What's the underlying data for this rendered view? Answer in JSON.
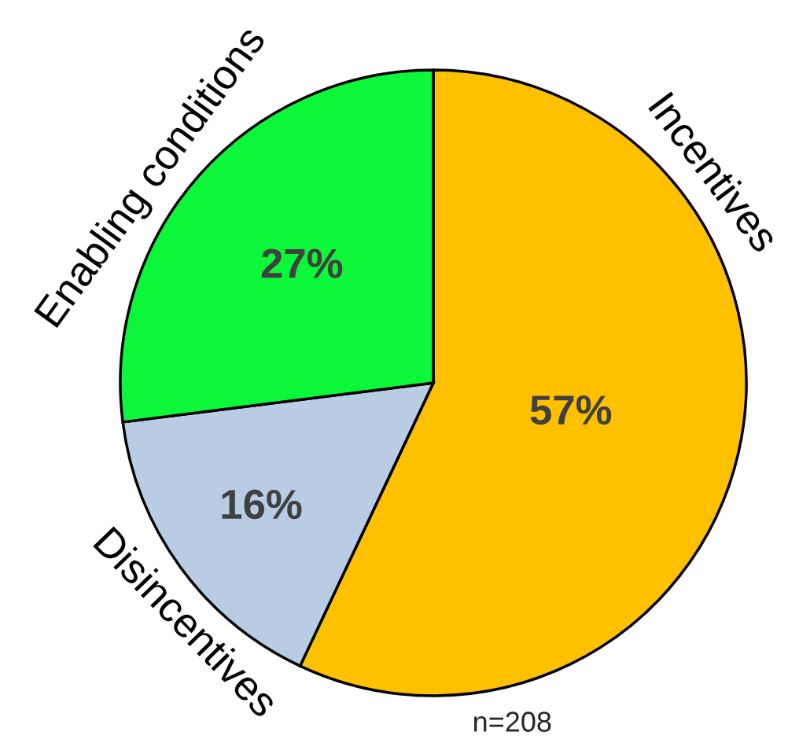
{
  "chart_data": {
    "type": "pie",
    "categories": [
      "Incentives",
      "Disincentives",
      "Enabling conditions"
    ],
    "values": [
      57,
      16,
      27
    ],
    "colors": [
      "#ffc000",
      "#b8cce4",
      "#0cf73a"
    ],
    "value_labels": [
      "57%",
      "16%",
      "27%"
    ],
    "annotations": [
      "n=208"
    ]
  }
}
